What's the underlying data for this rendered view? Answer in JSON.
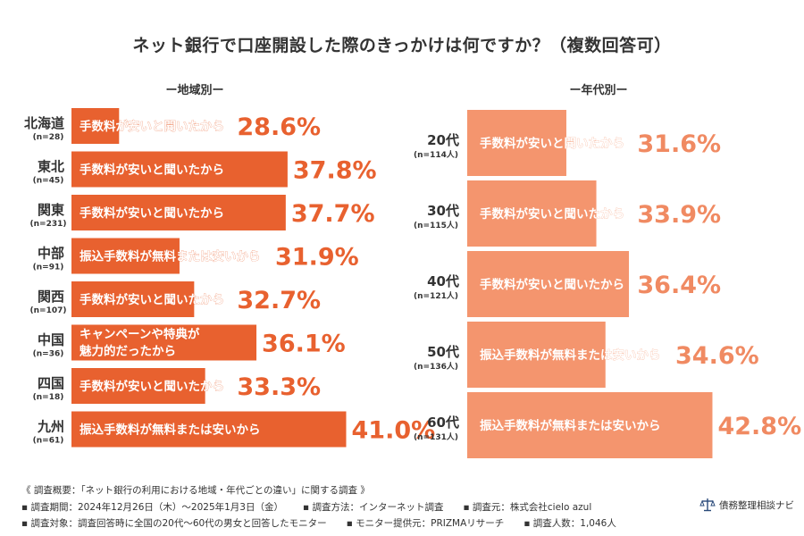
{
  "title": "ネット銀行で口座開設した際のきっかけは何ですか？（複数回答可）",
  "colors": {
    "region_bar": "#e8612f",
    "age_bar": "#f4956e",
    "value_region": "#e8612f",
    "value_age": "#f08a62"
  },
  "region_heading": "ー地域別ー",
  "age_heading": "ー年代別ー",
  "chart_data": [
    {
      "type": "bar",
      "title": "ー地域別ー",
      "categories": [
        "北海道",
        "東北",
        "関東",
        "中部",
        "関西",
        "中国",
        "四国",
        "九州"
      ],
      "sample_sizes": [
        "(n=28)",
        "(n=45)",
        "(n=231)",
        "(n=91)",
        "(n=107)",
        "(n=36)",
        "(n=18)",
        "(n=61)"
      ],
      "reasons": [
        "手数料が安いと聞いたから",
        "手数料が安いと聞いたから",
        "手数料が安いと聞いたから",
        "振込手数料が無料または安いから",
        "手数料が安いと聞いたから",
        "キャンペーンや特典が\n魅力的だったから",
        "手数料が安いと聞いたから",
        "振込手数料が無料または安いから"
      ],
      "values": [
        28.6,
        37.8,
        37.7,
        31.9,
        32.7,
        36.1,
        33.3,
        41.0
      ],
      "value_labels": [
        "28.6%",
        "37.8%",
        "37.7%",
        "31.9%",
        "32.7%",
        "36.1%",
        "33.3%",
        "41.0%"
      ],
      "unit": "%"
    },
    {
      "type": "bar",
      "title": "ー年代別ー",
      "categories": [
        "20代",
        "30代",
        "40代",
        "50代",
        "60代"
      ],
      "sample_sizes": [
        "(n=114人)",
        "(n=115人)",
        "(n=121人)",
        "(n=136人)",
        "(n=131人)"
      ],
      "reasons": [
        "手数料が安いと聞いたから",
        "手数料が安いと聞いたから",
        "手数料が安いと聞いたから",
        "振込手数料が無料または安いから",
        "振込手数料が無料または安いから"
      ],
      "values": [
        31.6,
        33.9,
        36.4,
        34.6,
        42.8
      ],
      "value_labels": [
        "31.6%",
        "33.9%",
        "36.4%",
        "34.6%",
        "42.8%"
      ],
      "unit": "%"
    }
  ],
  "footer": {
    "line1": "《 調査概要：「ネット銀行の利用における地域・年代ごとの違い」に関する調査 》",
    "line2a": "▪ 調査期間：2024年12月26日（木）～2025年1月3日（金）",
    "line2b": "▪ 調査方法：インターネット調査",
    "line2c": "▪ 調査元：株式会社cielo azul",
    "line3a": "▪ 調査対象：調査回答時に全国の20代～60代の男女と回答したモニター",
    "line3b": "▪ モニター提供元：PRIZMAリサーチ",
    "line3c": "▪ 調査人数：1,046人"
  },
  "brand": "債務整理相談ナビ"
}
